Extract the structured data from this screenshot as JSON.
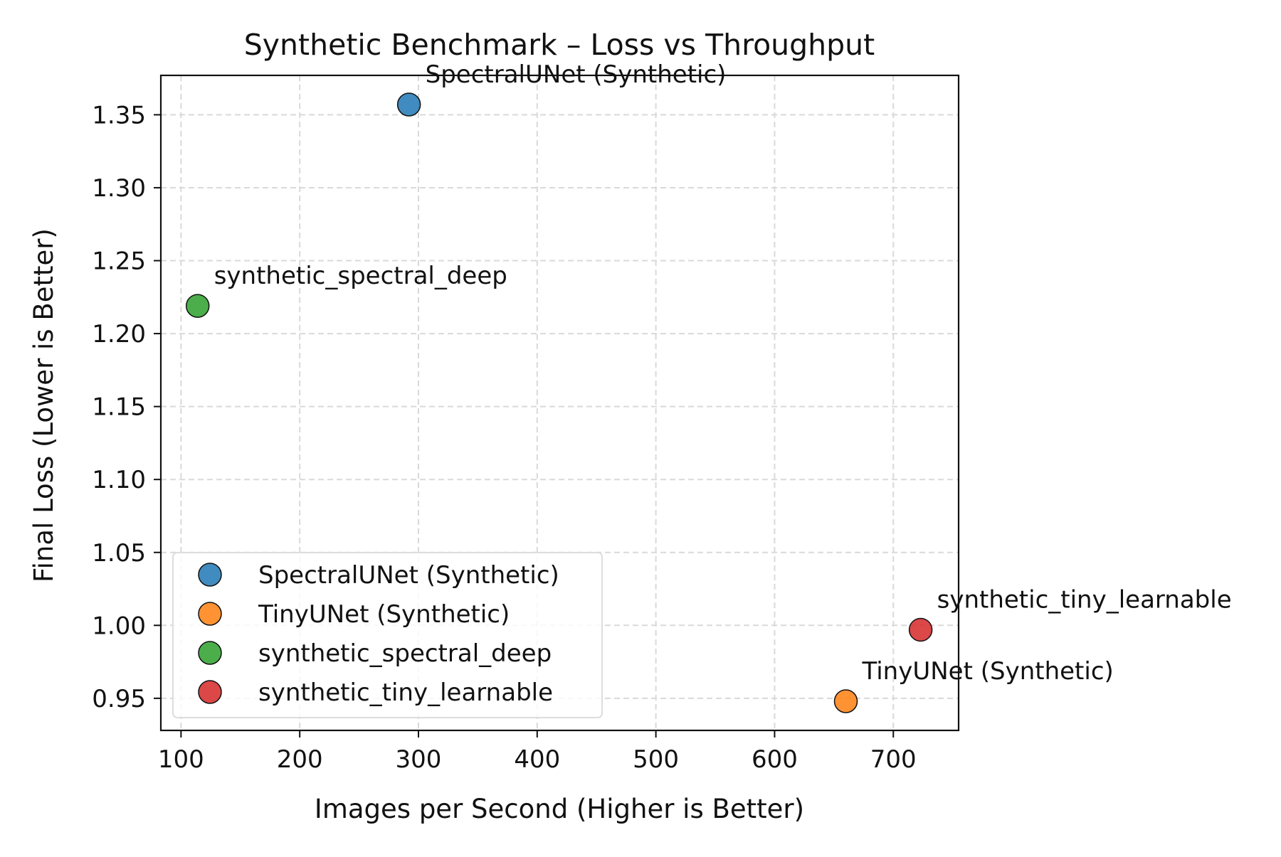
{
  "chart_data": {
    "type": "scatter",
    "title": "Synthetic Benchmark – Loss vs Throughput",
    "xlabel": "Images per Second (Higher is Better)",
    "ylabel": "Final Loss (Lower is Better)",
    "xlim": [
      83,
      755
    ],
    "ylim": [
      0.928,
      1.377
    ],
    "xticks": [
      100,
      200,
      300,
      400,
      500,
      600,
      700
    ],
    "yticks": [
      0.95,
      1.0,
      1.05,
      1.1,
      1.15,
      1.2,
      1.25,
      1.3,
      1.35
    ],
    "xtick_labels": [
      "100",
      "200",
      "300",
      "400",
      "500",
      "600",
      "700"
    ],
    "ytick_labels": [
      "0.95",
      "1.00",
      "1.05",
      "1.10",
      "1.15",
      "1.20",
      "1.25",
      "1.30",
      "1.35"
    ],
    "grid": true,
    "legend_position": "lower-left",
    "series": [
      {
        "name": "SpectralUNet (Synthetic)",
        "color": "#1f77b4",
        "x": 292,
        "y": 1.357,
        "annotation": "SpectralUNet (Synthetic)"
      },
      {
        "name": "TinyUNet (Synthetic)",
        "color": "#ff7f0e",
        "x": 660,
        "y": 0.948,
        "annotation": "TinyUNet (Synthetic)"
      },
      {
        "name": "synthetic_spectral_deep",
        "color": "#2ca02c",
        "x": 114,
        "y": 1.219,
        "annotation": "synthetic_spectral_deep"
      },
      {
        "name": "synthetic_tiny_learnable",
        "color": "#d62728",
        "x": 723,
        "y": 0.997,
        "annotation": "synthetic_tiny_learnable"
      }
    ]
  }
}
